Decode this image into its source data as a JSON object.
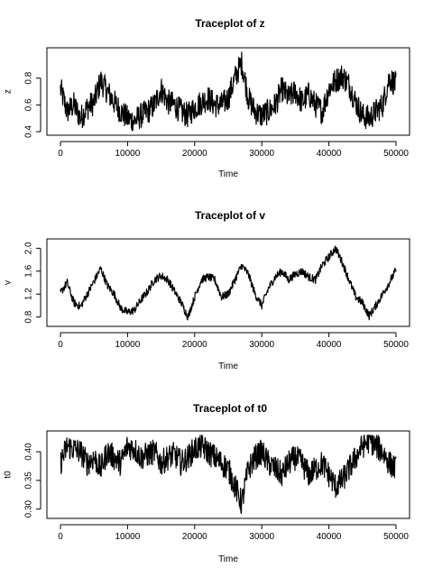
{
  "chart_data": [
    {
      "type": "line",
      "title": "Traceplot of z",
      "xlabel": "Time",
      "ylabel": "z",
      "xlim": [
        0,
        50000
      ],
      "ylim": [
        0.4,
        1.0
      ],
      "x_ticks": [
        0,
        10000,
        20000,
        30000,
        40000,
        50000
      ],
      "x_tick_labels": [
        "0",
        "10000",
        "20000",
        "30000",
        "40000",
        "50000"
      ],
      "y_ticks": [
        0.4,
        0.6,
        0.8
      ],
      "y_tick_labels": [
        "0.4",
        "0.6",
        "0.8"
      ],
      "grid": false,
      "series": [
        {
          "x": [
            0,
            1000,
            2000,
            3000,
            4000,
            5000,
            6000,
            7000,
            8000,
            9000,
            10000,
            11000,
            12000,
            13000,
            14000,
            15000,
            16000,
            17000,
            18000,
            19000,
            20000,
            21000,
            22000,
            23000,
            24000,
            25000,
            26000,
            27000,
            28000,
            29000,
            30000,
            31000,
            32000,
            33000,
            34000,
            35000,
            36000,
            37000,
            38000,
            39000,
            40000,
            41000,
            42000,
            43000,
            44000,
            45000,
            46000,
            47000,
            48000,
            49000,
            50000
          ],
          "values": [
            0.72,
            0.55,
            0.6,
            0.5,
            0.58,
            0.62,
            0.78,
            0.7,
            0.62,
            0.55,
            0.5,
            0.48,
            0.52,
            0.55,
            0.6,
            0.72,
            0.62,
            0.6,
            0.55,
            0.52,
            0.58,
            0.62,
            0.65,
            0.6,
            0.6,
            0.65,
            0.8,
            0.92,
            0.65,
            0.55,
            0.52,
            0.55,
            0.6,
            0.72,
            0.65,
            0.7,
            0.62,
            0.68,
            0.6,
            0.55,
            0.72,
            0.78,
            0.82,
            0.75,
            0.62,
            0.52,
            0.5,
            0.55,
            0.6,
            0.8,
            0.75
          ]
        }
      ]
    },
    {
      "type": "line",
      "title": "Traceplot of v",
      "xlabel": "Time",
      "ylabel": "v",
      "xlim": [
        0,
        50000
      ],
      "ylim": [
        0.7,
        2.1
      ],
      "x_ticks": [
        0,
        10000,
        20000,
        30000,
        40000,
        50000
      ],
      "x_tick_labels": [
        "0",
        "10000",
        "20000",
        "30000",
        "40000",
        "50000"
      ],
      "y_ticks": [
        0.8,
        1.2,
        1.6,
        2.0
      ],
      "y_tick_labels": [
        "0.8",
        "1.2",
        "1.6",
        "2.0"
      ],
      "grid": false,
      "series": [
        {
          "x": [
            0,
            1000,
            2000,
            3000,
            4000,
            5000,
            6000,
            7000,
            8000,
            9000,
            10000,
            11000,
            12000,
            13000,
            14000,
            15000,
            16000,
            17000,
            18000,
            19000,
            20000,
            21000,
            22000,
            23000,
            24000,
            25000,
            26000,
            27000,
            28000,
            29000,
            30000,
            31000,
            32000,
            33000,
            34000,
            35000,
            36000,
            37000,
            38000,
            39000,
            40000,
            41000,
            42000,
            43000,
            44000,
            45000,
            46000,
            47000,
            48000,
            49000,
            50000
          ],
          "values": [
            1.22,
            1.4,
            1.05,
            0.98,
            1.2,
            1.42,
            1.65,
            1.35,
            1.2,
            0.95,
            0.88,
            0.92,
            1.1,
            1.25,
            1.45,
            1.52,
            1.45,
            1.25,
            1.05,
            0.8,
            1.15,
            1.45,
            1.5,
            1.45,
            1.15,
            1.2,
            1.45,
            1.7,
            1.55,
            1.2,
            1.0,
            1.3,
            1.5,
            1.6,
            1.45,
            1.55,
            1.6,
            1.5,
            1.45,
            1.7,
            1.85,
            2.0,
            1.75,
            1.45,
            1.15,
            1.05,
            0.82,
            1.0,
            1.2,
            1.4,
            1.62
          ]
        }
      ]
    },
    {
      "type": "line",
      "title": "Traceplot of t0",
      "xlabel": "Time",
      "ylabel": "t0",
      "xlim": [
        0,
        50000
      ],
      "ylim": [
        0.29,
        0.43
      ],
      "x_ticks": [
        0,
        10000,
        20000,
        30000,
        40000,
        50000
      ],
      "x_tick_labels": [
        "0",
        "10000",
        "20000",
        "30000",
        "40000",
        "50000"
      ],
      "y_ticks": [
        0.3,
        0.35,
        0.4
      ],
      "y_tick_labels": [
        "0.30",
        "0.35",
        "0.40"
      ],
      "grid": false,
      "series": [
        {
          "x": [
            0,
            1000,
            2000,
            3000,
            4000,
            5000,
            6000,
            7000,
            8000,
            9000,
            10000,
            11000,
            12000,
            13000,
            14000,
            15000,
            16000,
            17000,
            18000,
            19000,
            20000,
            21000,
            22000,
            23000,
            24000,
            25000,
            26000,
            27000,
            28000,
            29000,
            30000,
            31000,
            32000,
            33000,
            34000,
            35000,
            36000,
            37000,
            38000,
            39000,
            40000,
            41000,
            42000,
            43000,
            44000,
            45000,
            46000,
            47000,
            48000,
            49000,
            50000
          ],
          "values": [
            0.38,
            0.41,
            0.405,
            0.4,
            0.38,
            0.39,
            0.37,
            0.4,
            0.39,
            0.38,
            0.41,
            0.405,
            0.39,
            0.395,
            0.4,
            0.38,
            0.39,
            0.395,
            0.38,
            0.39,
            0.405,
            0.41,
            0.4,
            0.39,
            0.38,
            0.37,
            0.34,
            0.31,
            0.37,
            0.39,
            0.4,
            0.38,
            0.37,
            0.36,
            0.38,
            0.39,
            0.38,
            0.36,
            0.37,
            0.38,
            0.36,
            0.34,
            0.35,
            0.37,
            0.39,
            0.41,
            0.42,
            0.41,
            0.4,
            0.38,
            0.37
          ]
        }
      ]
    }
  ]
}
